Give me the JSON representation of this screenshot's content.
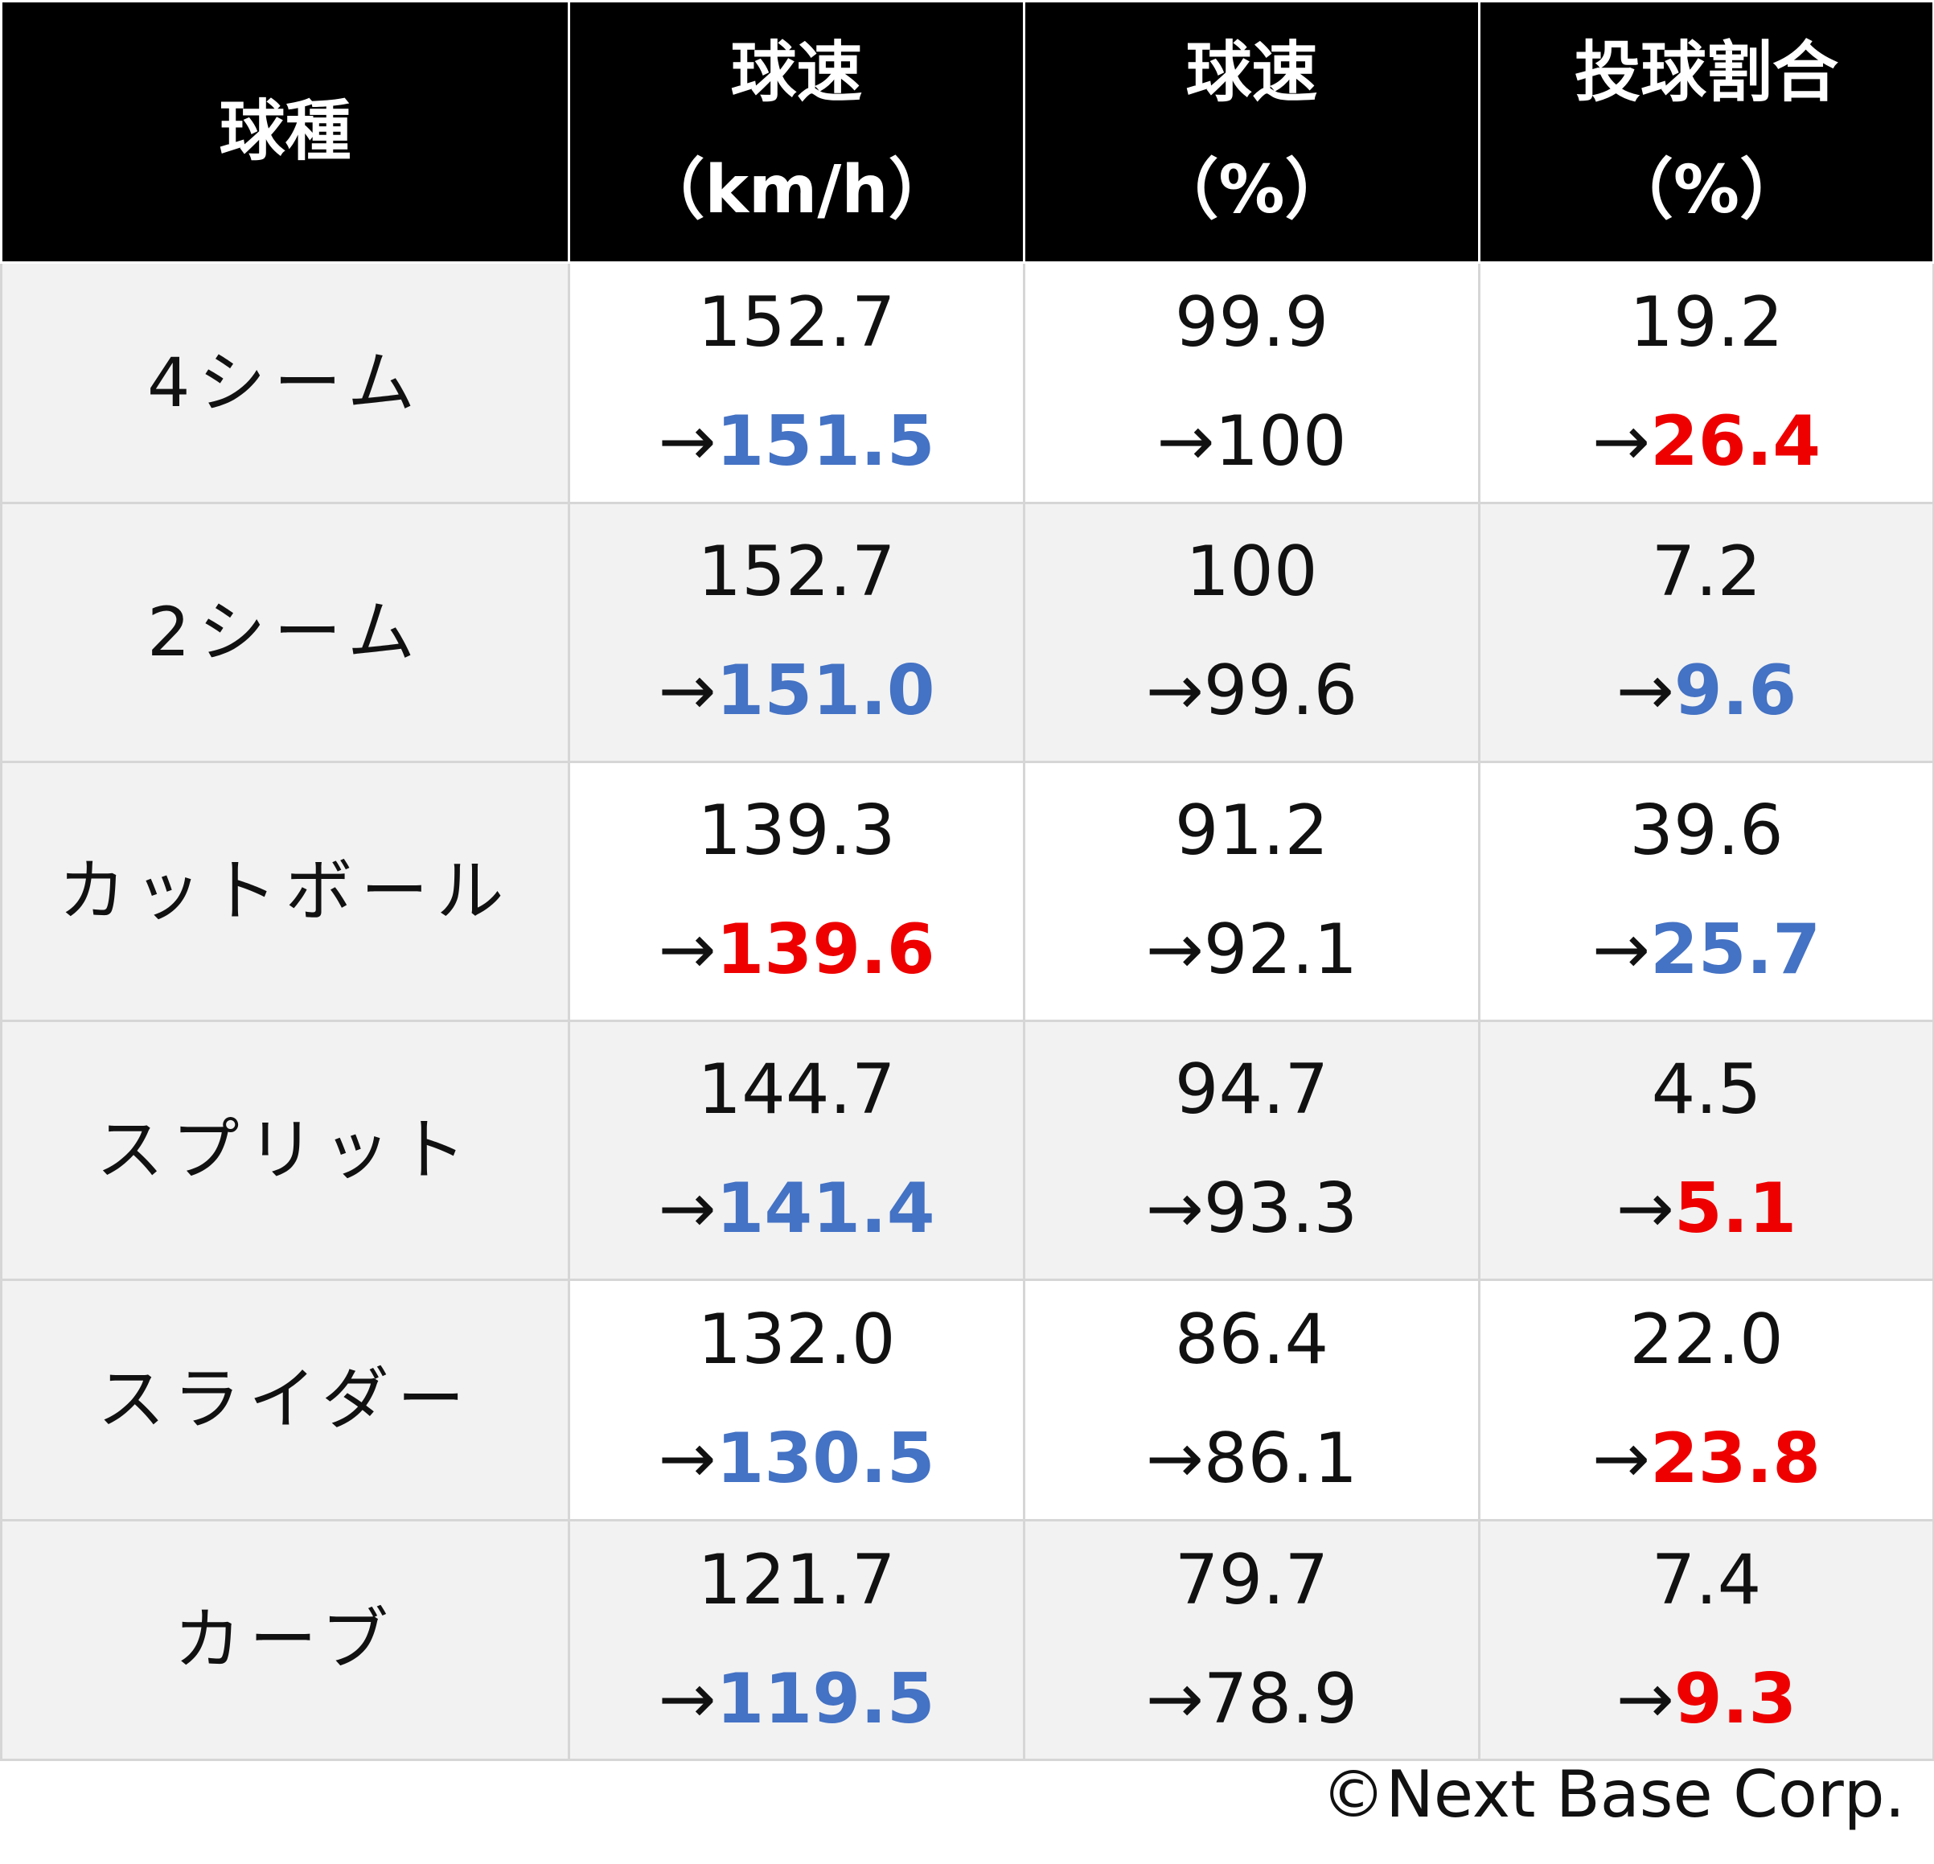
{
  "table": {
    "headers": [
      [
        "球種"
      ],
      [
        "球速",
        "（km/h）"
      ],
      [
        "球速",
        "（%）"
      ],
      [
        "投球割合",
        "（%）"
      ]
    ],
    "rows": [
      {
        "label": "4シーム",
        "cells": [
          {
            "before": "152.7",
            "arrow": "→",
            "after": "151.5",
            "after_color": "blue"
          },
          {
            "before": "99.9",
            "arrow": "→",
            "after": "100",
            "after_color": "plain"
          },
          {
            "before": "19.2",
            "arrow": "→",
            "after": "26.4",
            "after_color": "red"
          }
        ]
      },
      {
        "label": "2シーム",
        "cells": [
          {
            "before": "152.7",
            "arrow": "→",
            "after": "151.0",
            "after_color": "blue"
          },
          {
            "before": "100",
            "arrow": "→",
            "after": "99.6",
            "after_color": "plain"
          },
          {
            "before": "7.2",
            "arrow": "→",
            "after": "9.6",
            "after_color": "blue"
          }
        ]
      },
      {
        "label": "カットボール",
        "cells": [
          {
            "before": "139.3",
            "arrow": "→",
            "after": "139.6",
            "after_color": "red"
          },
          {
            "before": "91.2",
            "arrow": "→",
            "after": "92.1",
            "after_color": "plain"
          },
          {
            "before": "39.6",
            "arrow": "→",
            "after": "25.7",
            "after_color": "blue"
          }
        ]
      },
      {
        "label": "スプリット",
        "cells": [
          {
            "before": "144.7",
            "arrow": "→",
            "after": "141.4",
            "after_color": "blue"
          },
          {
            "before": "94.7",
            "arrow": "→",
            "after": "93.3",
            "after_color": "plain"
          },
          {
            "before": "4.5",
            "arrow": "→",
            "after": "5.1",
            "after_color": "red"
          }
        ]
      },
      {
        "label": "スライダー",
        "cells": [
          {
            "before": "132.0",
            "arrow": "→",
            "after": "130.5",
            "after_color": "blue"
          },
          {
            "before": "86.4",
            "arrow": "→",
            "after": "86.1",
            "after_color": "plain"
          },
          {
            "before": "22.0",
            "arrow": "→",
            "after": "23.8",
            "after_color": "red"
          }
        ]
      },
      {
        "label": "カーブ",
        "cells": [
          {
            "before": "121.7",
            "arrow": "→",
            "after": "119.5",
            "after_color": "blue"
          },
          {
            "before": "79.7",
            "arrow": "→",
            "after": "78.9",
            "after_color": "plain"
          },
          {
            "before": "7.4",
            "arrow": "→",
            "after": "9.3",
            "after_color": "red"
          }
        ]
      }
    ]
  },
  "colors": {
    "blue": "#4472c4",
    "red": "#ee0000",
    "header_bg": "#000000",
    "row_alt_bg": "#f2f2f2"
  },
  "credit": "©Next Base Corp."
}
